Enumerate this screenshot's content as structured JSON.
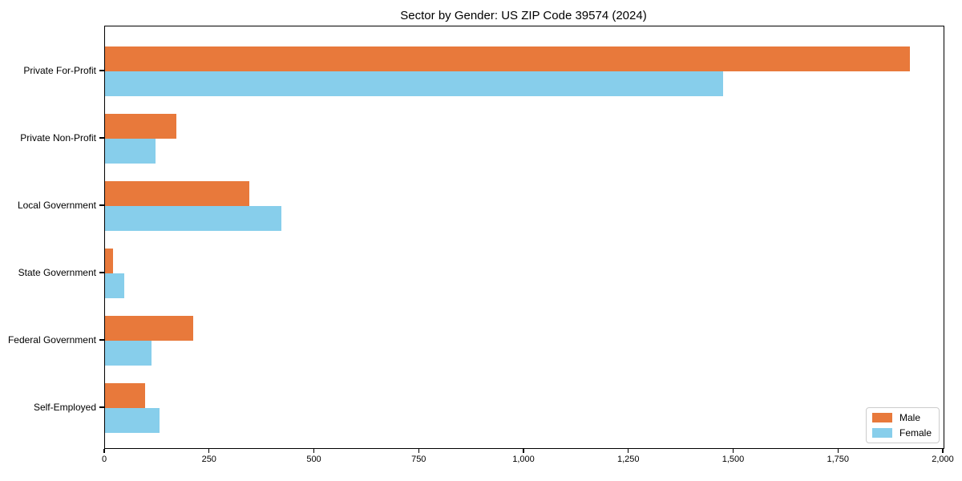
{
  "chart_data": {
    "type": "bar",
    "orientation": "horizontal",
    "title": "Sector by Gender: US ZIP Code 39574 (2024)",
    "categories": [
      "Private For-Profit",
      "Private Non-Profit",
      "Local Government",
      "State Government",
      "Federal Government",
      "Self-Employed"
    ],
    "series": [
      {
        "name": "Male",
        "color": "#e8793b",
        "values": [
          1920,
          170,
          345,
          20,
          210,
          95
        ]
      },
      {
        "name": "Female",
        "color": "#87ceeb",
        "values": [
          1475,
          120,
          420,
          45,
          110,
          130
        ]
      }
    ],
    "xlabel": "",
    "ylabel": "",
    "xlim": [
      0,
      2000
    ],
    "xticks": {
      "values": [
        0,
        250,
        500,
        750,
        1000,
        1250,
        1500,
        1750,
        2000
      ],
      "labels": [
        "0",
        "250",
        "500",
        "750",
        "1,000",
        "1,250",
        "1,500",
        "1,750",
        "2,000"
      ]
    },
    "grid": false,
    "legend_position": "lower right"
  }
}
